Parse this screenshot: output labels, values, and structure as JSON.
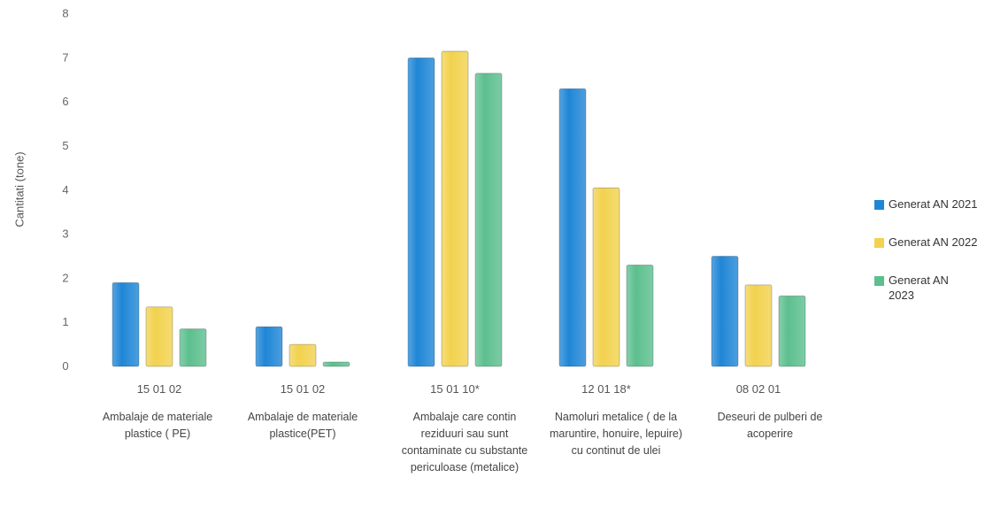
{
  "chart_data": {
    "type": "bar",
    "title": "",
    "ylabel": "Cantitati (tone)",
    "xlabel": "",
    "ylim": [
      0,
      8
    ],
    "yticks": [
      0,
      1,
      2,
      3,
      4,
      5,
      6,
      7,
      8
    ],
    "grid": false,
    "legend_position": "right",
    "categories": [
      {
        "code": "15 01 02",
        "name": "Ambalaje de materiale plastice ( PE)"
      },
      {
        "code": "15 01 02",
        "name": "Ambalaje de materiale plastice(PET)"
      },
      {
        "code": "15 01 10*",
        "name": "Ambalaje care contin reziduuri sau sunt contaminate cu substante periculoase (metalice)"
      },
      {
        "code": "12 01 18*",
        "name": "Namoluri metalice ( de la maruntire, honuire, lepuire) cu continut de ulei"
      },
      {
        "code": "08 02 01",
        "name": "Deseuri de pulberi de acoperire"
      }
    ],
    "series": [
      {
        "name": "Generat AN 2021",
        "color": "#1f86d6",
        "values": [
          1.9,
          0.9,
          7.0,
          6.3,
          2.5
        ]
      },
      {
        "name": "Generat AN 2022",
        "color": "#f2d24e",
        "values": [
          1.35,
          0.5,
          7.15,
          4.05,
          1.85
        ]
      },
      {
        "name": "Generat  AN 2023",
        "color": "#5cbf8e",
        "values": [
          0.85,
          0.1,
          6.65,
          2.3,
          1.6
        ]
      }
    ]
  }
}
